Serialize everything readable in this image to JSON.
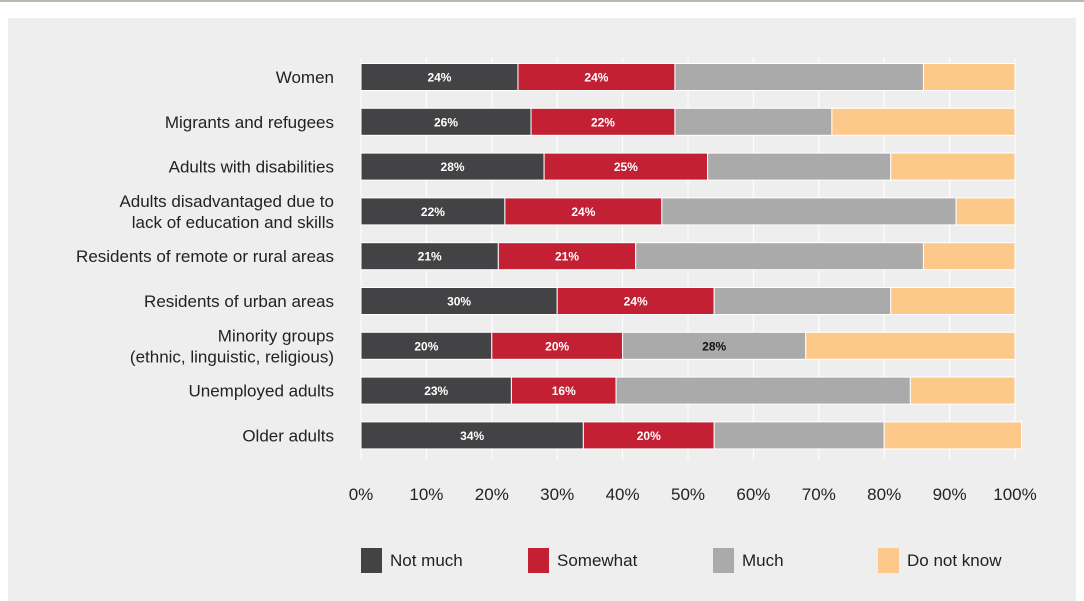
{
  "colors": {
    "not_much": "#434345",
    "somewhat": "#c32034",
    "much": "#aaaaab",
    "do_not_know": "#fcc98a",
    "label_light": "#ffffff",
    "label_dark": "#111111",
    "gridline": "#ffffff"
  },
  "chart_data": {
    "type": "bar",
    "orientation": "horizontal",
    "stacked": true,
    "title": "",
    "xlabel": "",
    "ylabel": "",
    "xlim": [
      0,
      100
    ],
    "x_ticks": [
      "0%",
      "10%",
      "20%",
      "30%",
      "40%",
      "50%",
      "60%",
      "70%",
      "80%",
      "90%",
      "100%"
    ],
    "grid": true,
    "legend_position": "bottom",
    "categories": [
      [
        "Women"
      ],
      [
        "Migrants and refugees"
      ],
      [
        "Adults with disabilities"
      ],
      [
        "Adults disadvantaged due to",
        "lack of education and skills"
      ],
      [
        "Residents of remote or rural areas"
      ],
      [
        "Residents of urban areas"
      ],
      [
        "Minority groups",
        "(ethnic, linguistic, religious)"
      ],
      [
        "Unemployed adults"
      ],
      [
        "Older adults"
      ]
    ],
    "series": [
      {
        "name": "Not much",
        "color_key": "not_much",
        "values": [
          24,
          26,
          28,
          22,
          21,
          30,
          20,
          23,
          34
        ],
        "labels": [
          "24%",
          "26%",
          "28%",
          "22%",
          "21%",
          "30%",
          "20%",
          "23%",
          "34%"
        ],
        "label_color": "label_light"
      },
      {
        "name": "Somewhat",
        "color_key": "somewhat",
        "values": [
          24,
          22,
          25,
          24,
          21,
          24,
          20,
          16,
          20
        ],
        "labels": [
          "24%",
          "22%",
          "25%",
          "24%",
          "21%",
          "24%",
          "20%",
          "16%",
          "20%"
        ],
        "label_color": "label_light"
      },
      {
        "name": "Much",
        "color_key": "much",
        "values": [
          38,
          24,
          28,
          45,
          44,
          27,
          28,
          45,
          26
        ],
        "labels": [
          "",
          "",
          "",
          "",
          "",
          "",
          "28%",
          "",
          ""
        ],
        "label_color": "label_dark"
      },
      {
        "name": "Do not know",
        "color_key": "do_not_know",
        "values": [
          14,
          28,
          19,
          9,
          14,
          19,
          32,
          16,
          21
        ],
        "labels": [
          "",
          "",
          "",
          "",
          "",
          "",
          "",
          "",
          ""
        ],
        "label_color": "label_dark"
      }
    ]
  }
}
